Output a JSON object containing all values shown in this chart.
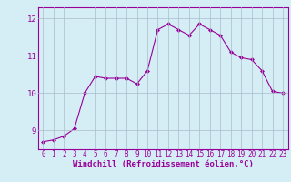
{
  "x": [
    0,
    1,
    2,
    3,
    4,
    5,
    6,
    7,
    8,
    9,
    10,
    11,
    12,
    13,
    14,
    15,
    16,
    17,
    18,
    19,
    20,
    21,
    22,
    23
  ],
  "y": [
    8.7,
    8.75,
    8.85,
    9.05,
    10.0,
    10.45,
    10.4,
    10.4,
    10.4,
    10.25,
    10.6,
    11.7,
    11.85,
    11.7,
    11.55,
    11.85,
    11.7,
    11.55,
    11.1,
    10.95,
    10.9,
    10.6,
    10.05,
    10.0
  ],
  "line_color": "#990099",
  "marker": "D",
  "marker_size": 2.0,
  "bg_color": "#d5eef5",
  "grid_color": "#aabbcc",
  "xlabel": "Windchill (Refroidissement éolien,°C)",
  "xlabel_color": "#990099",
  "tick_color": "#990099",
  "ylim": [
    8.5,
    12.3
  ],
  "xlim": [
    -0.5,
    23.5
  ],
  "yticks": [
    9,
    10,
    11,
    12
  ],
  "xticks": [
    0,
    1,
    2,
    3,
    4,
    5,
    6,
    7,
    8,
    9,
    10,
    11,
    12,
    13,
    14,
    15,
    16,
    17,
    18,
    19,
    20,
    21,
    22,
    23
  ],
  "spine_color": "#990099",
  "tick_fontsize": 5.5,
  "ylabel_fontsize": 6.5,
  "xlabel_fontsize": 6.5
}
